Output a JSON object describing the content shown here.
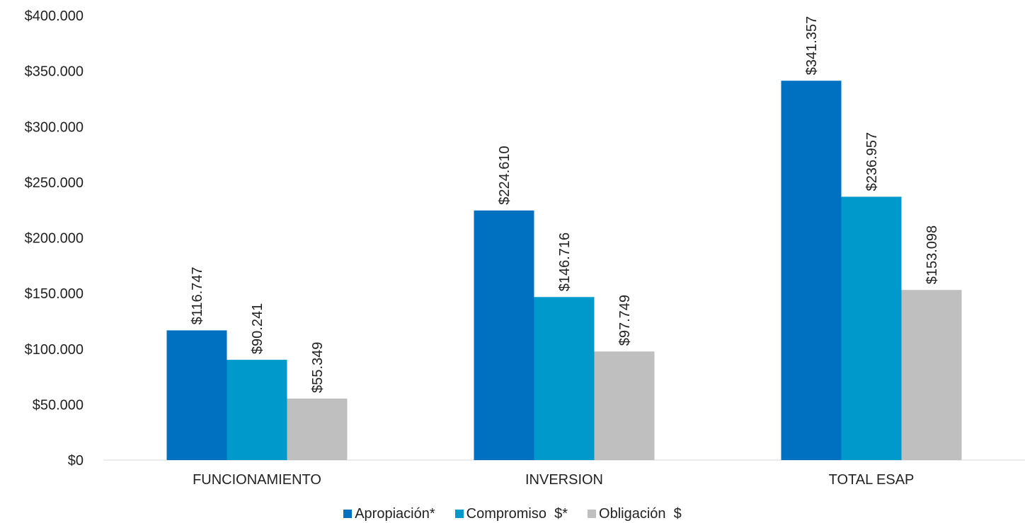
{
  "chart_data": {
    "type": "bar",
    "title": "",
    "xlabel": "",
    "ylabel": "",
    "ylim": [
      0,
      400000
    ],
    "yticks": [
      0,
      50000,
      100000,
      150000,
      200000,
      250000,
      300000,
      350000,
      400000
    ],
    "ytick_labels": [
      "$0",
      "$50.000",
      "$100.000",
      "$150.000",
      "$200.000",
      "$250.000",
      "$300.000",
      "$350.000",
      "$400.000"
    ],
    "grid": false,
    "legend_position": "bottom",
    "categories": [
      "FUNCIONAMIENTO",
      "INVERSION",
      "TOTAL ESAP"
    ],
    "series": [
      {
        "name": "Apropiación*",
        "color": "#0070C0",
        "values": [
          116747,
          224610,
          341357
        ],
        "labels": [
          "$116.747",
          "$224.610",
          "$341.357"
        ]
      },
      {
        "name": "Compromiso  $*",
        "color": "#0099CC",
        "values": [
          90241,
          146716,
          236957
        ],
        "labels": [
          "$90.241",
          "$146.716",
          "$236.957"
        ]
      },
      {
        "name": "Obligación  $",
        "color": "#BFBFBF",
        "values": [
          55349,
          97749,
          153098
        ],
        "labels": [
          "$55.349",
          "$97.749",
          "$153.098"
        ]
      }
    ]
  }
}
